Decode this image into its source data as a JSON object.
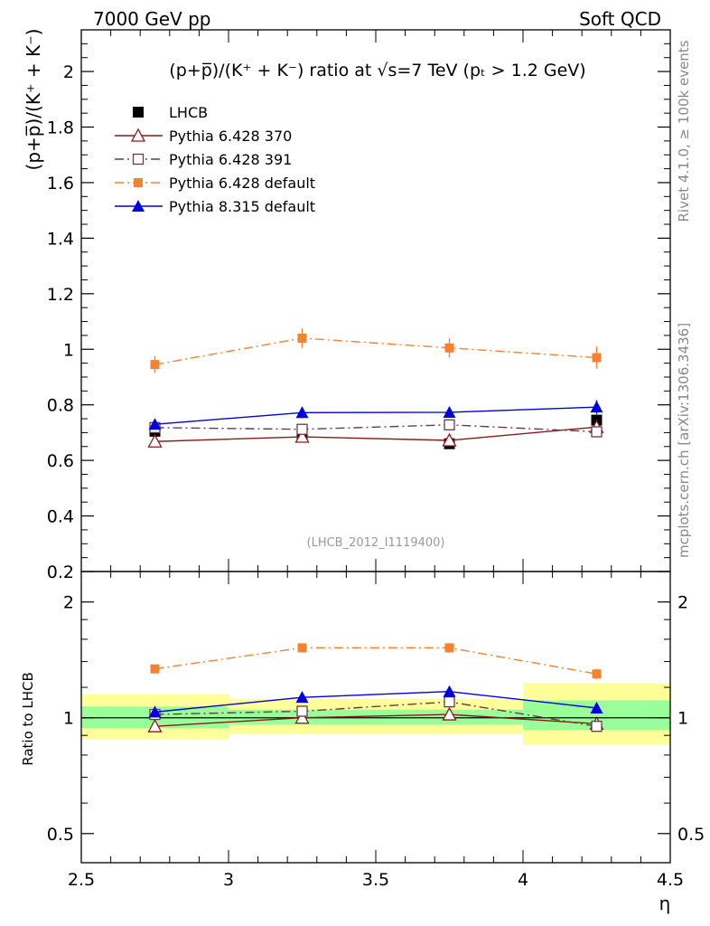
{
  "header": {
    "left": "7000 GeV pp",
    "right": "Soft QCD"
  },
  "side_text": {
    "rivet": "Rivet 4.1.0, ≥ 100k events",
    "mcplots": "mcplots.cern.ch [arXiv:1306.3436]"
  },
  "chart_data": [
    {
      "type": "scatter",
      "title": "(p+p̅)/(K⁺ + K⁻) ratio at √s=7 TeV (pₜ > 1.2 GeV)",
      "ylabel": "(p+p̅)/(K⁺ + K⁻)",
      "xlabel": "",
      "analysis_id": "(LHCB_2012_I1119400)",
      "xlim": [
        2.5,
        4.5
      ],
      "ylim": [
        0.2,
        2.15
      ],
      "yticks": [
        0.2,
        0.4,
        0.6,
        0.8,
        1,
        1.2,
        1.4,
        1.6,
        1.8,
        2
      ],
      "ytick_labels": [
        "0.2",
        "0.4",
        "0.6",
        "0.8",
        "1",
        "1.2",
        "1.4",
        "1.6",
        "1.8",
        "2"
      ],
      "x": [
        2.75,
        3.25,
        3.75,
        4.25
      ],
      "x_bin_edges": [
        2.5,
        3.0,
        3.5,
        4.0,
        4.5
      ],
      "legend_position": "top-left",
      "series": [
        {
          "name": "LHCB",
          "color": "#000000",
          "marker": "filled-square",
          "line": "none",
          "values": [
            0.705,
            0.685,
            0.66,
            0.745
          ],
          "errors": [
            0.015,
            0.015,
            0.015,
            0.02
          ]
        },
        {
          "name": "Pythia 6.428 370",
          "color": "#8b1a1a",
          "marker": "open-triangle",
          "line": "solid",
          "values": [
            0.668,
            0.685,
            0.672,
            0.72
          ],
          "errors": [
            0.01,
            0.01,
            0.01,
            0.012
          ]
        },
        {
          "name": "Pythia 6.428 391",
          "color": "#6b3a48",
          "marker": "open-square",
          "line": "dash-dot",
          "values": [
            0.718,
            0.712,
            0.728,
            0.703
          ],
          "errors": [
            0.012,
            0.012,
            0.012,
            0.015
          ]
        },
        {
          "name": "Pythia 6.428 default",
          "color": "#f58231",
          "marker": "filled-square-small",
          "line": "dash-dot",
          "values": [
            0.945,
            1.04,
            1.005,
            0.97
          ],
          "errors": [
            0.03,
            0.035,
            0.035,
            0.04
          ]
        },
        {
          "name": "Pythia 8.315 default",
          "color": "#0000dd",
          "marker": "filled-triangle",
          "line": "solid",
          "values": [
            0.73,
            0.772,
            0.773,
            0.792
          ],
          "errors": [
            0.015,
            0.02,
            0.02,
            0.025
          ]
        }
      ]
    },
    {
      "type": "scatter",
      "ylabel": "Ratio to LHCB",
      "xlabel": "η",
      "yscale": "log",
      "ylim": [
        0.42,
        2.4
      ],
      "yticks": [
        0.5,
        1,
        2
      ],
      "ytick_labels": [
        "0.5",
        "1",
        "2"
      ],
      "xticks": [
        2.5,
        3,
        3.5,
        4,
        4.5
      ],
      "xtick_labels": [
        "2.5",
        "3",
        "3.5",
        "4",
        "4.5"
      ],
      "x": [
        2.75,
        3.25,
        3.75,
        4.25
      ],
      "x_bin_edges": [
        2.5,
        3.0,
        3.5,
        4.0,
        4.5
      ],
      "band_green": [
        [
          0.94,
          1.07
        ],
        [
          0.96,
          1.05
        ],
        [
          0.96,
          1.05
        ],
        [
          0.93,
          1.11
        ]
      ],
      "band_yellow": [
        [
          0.88,
          1.15
        ],
        [
          0.91,
          1.12
        ],
        [
          0.91,
          1.12
        ],
        [
          0.85,
          1.23
        ]
      ],
      "series": [
        {
          "name": "Pythia 6.428 370",
          "color": "#8b1a1a",
          "marker": "open-triangle",
          "line": "solid",
          "values": [
            0.95,
            1.0,
            1.02,
            0.965
          ],
          "errors": [
            0.01,
            0.01,
            0.01,
            0.015
          ]
        },
        {
          "name": "Pythia 6.428 391",
          "color": "#6b3a48",
          "marker": "open-square",
          "line": "dash-dot",
          "values": [
            1.02,
            1.04,
            1.1,
            0.95
          ],
          "errors": [
            0.015,
            0.015,
            0.02,
            0.02
          ]
        },
        {
          "name": "Pythia 6.428 default",
          "color": "#f58231",
          "marker": "filled-square-small",
          "line": "dash-dot",
          "values": [
            1.34,
            1.52,
            1.52,
            1.3
          ],
          "errors": [
            0.03,
            0.035,
            0.035,
            0.04
          ]
        },
        {
          "name": "Pythia 8.315 default",
          "color": "#0000dd",
          "marker": "filled-triangle",
          "line": "solid",
          "values": [
            1.035,
            1.13,
            1.17,
            1.06
          ],
          "errors": [
            0.02,
            0.02,
            0.025,
            0.025
          ]
        }
      ]
    }
  ]
}
